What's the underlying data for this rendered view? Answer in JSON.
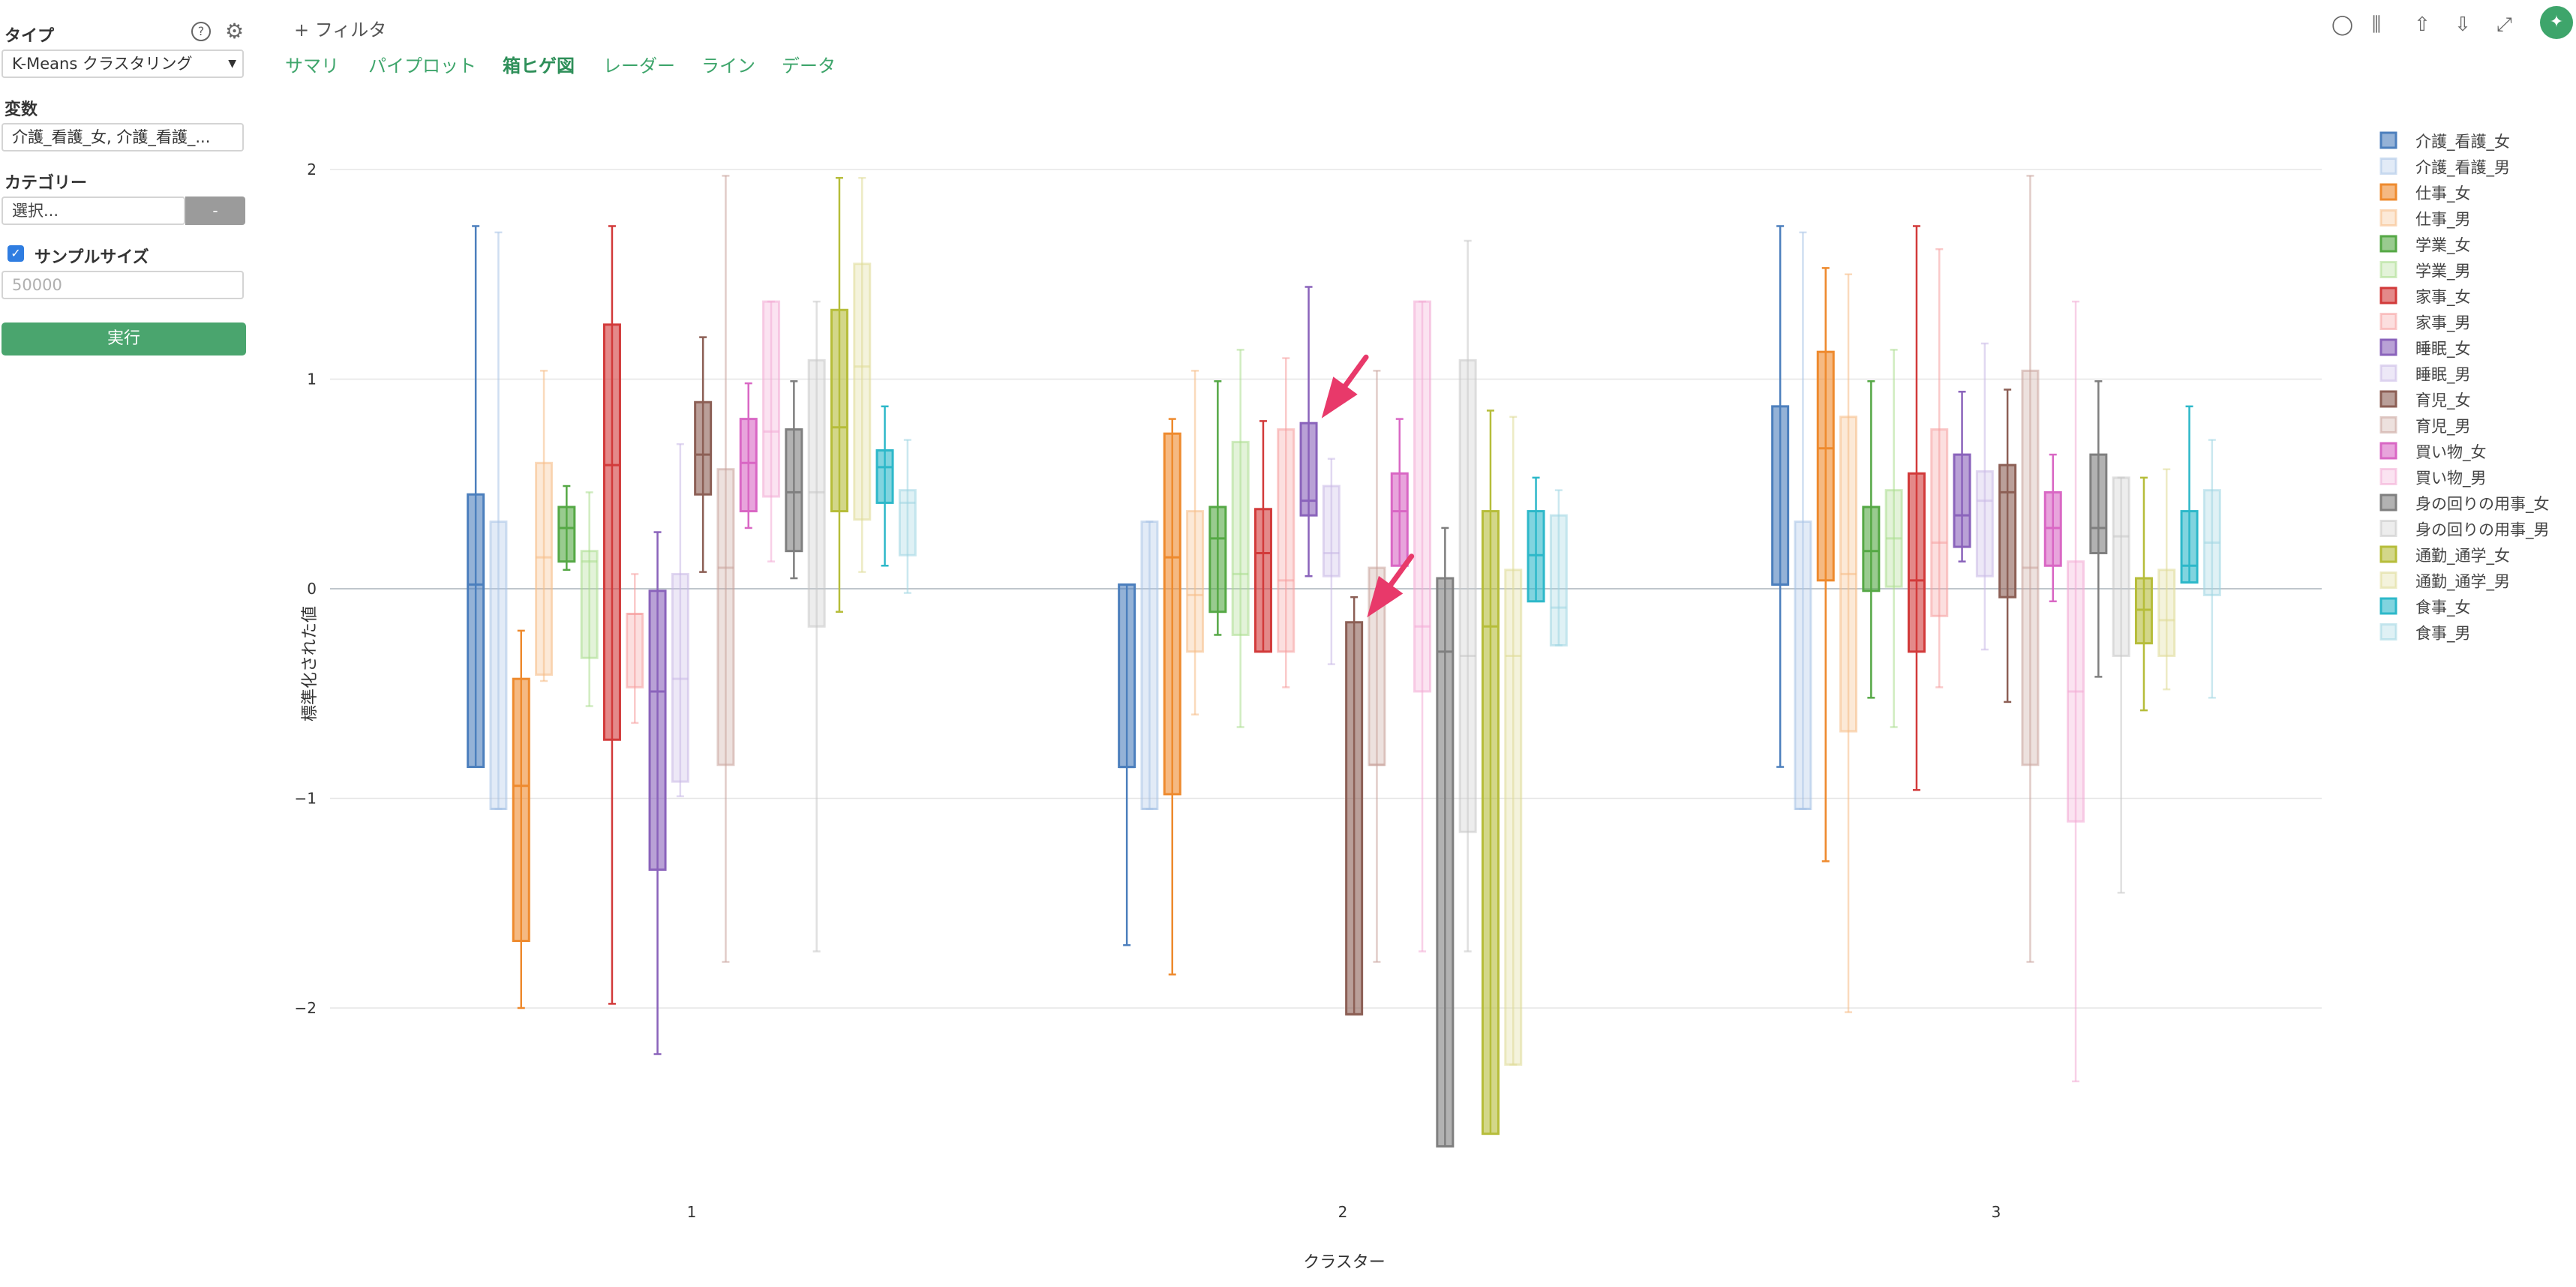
{
  "sidebar": {
    "type_label": "タイプ",
    "type_value": "K-Means クラスタリング",
    "vars_label": "変数",
    "vars_value": "介護_看護_女, 介護_看護_...",
    "category_label": "カテゴリー",
    "category_value": "選択...",
    "category_button": "-",
    "sample_label": "サンプルサイズ",
    "sample_checked": true,
    "sample_placeholder": "50000",
    "run_label": "実行"
  },
  "header": {
    "filter_label": "+ フィルタ",
    "tabs": [
      "サマリ",
      "パイプロット",
      "箱ヒゲ図",
      "レーダー",
      "ライン",
      "データ"
    ],
    "active_tab": "箱ヒゲ図"
  },
  "chart_data": {
    "type": "boxplot",
    "xlabel": "クラスター",
    "ylabel": "標準化された値",
    "ylim": [
      -2.65,
      2.25
    ],
    "yticks": [
      -2,
      -1,
      0,
      1,
      2
    ],
    "categories": [
      "1",
      "2",
      "3"
    ],
    "legend_position": "right",
    "series": [
      {
        "name": "介護_看護_女",
        "color": "#4c7fbd",
        "alpha": 1,
        "boxes": [
          {
            "min": -0.85,
            "q1": -0.85,
            "median": 0.02,
            "q3": 0.45,
            "max": 1.73
          },
          {
            "min": -1.7,
            "q1": -0.85,
            "median": -0.85,
            "q3": 0.02,
            "max": 0.02
          },
          {
            "min": -0.85,
            "q1": 0.02,
            "median": 0.02,
            "q3": 0.87,
            "max": 1.73
          }
        ]
      },
      {
        "name": "介護_看護_男",
        "color": "#a8c2e6",
        "alpha": 0.55,
        "boxes": [
          {
            "min": -1.05,
            "q1": -1.05,
            "median": -1.05,
            "q3": 0.32,
            "max": 1.7
          },
          {
            "min": -1.05,
            "q1": -1.05,
            "median": -1.05,
            "q3": 0.32,
            "max": 0.32
          },
          {
            "min": -1.05,
            "q1": -1.05,
            "median": -1.05,
            "q3": 0.32,
            "max": 1.7
          }
        ]
      },
      {
        "name": "仕事_女",
        "color": "#ee8a2e",
        "alpha": 1,
        "boxes": [
          {
            "min": -2.0,
            "q1": -1.68,
            "median": -0.94,
            "q3": -0.43,
            "max": -0.2
          },
          {
            "min": -1.84,
            "q1": -0.98,
            "median": 0.15,
            "q3": 0.74,
            "max": 0.81
          },
          {
            "min": -1.3,
            "q1": 0.04,
            "median": 0.67,
            "q3": 1.13,
            "max": 1.53
          }
        ]
      },
      {
        "name": "仕事_男",
        "color": "#f6bc85",
        "alpha": 0.55,
        "boxes": [
          {
            "min": -0.44,
            "q1": -0.41,
            "median": 0.15,
            "q3": 0.6,
            "max": 1.04
          },
          {
            "min": -0.6,
            "q1": -0.3,
            "median": -0.03,
            "q3": 0.37,
            "max": 1.04
          },
          {
            "min": -2.02,
            "q1": -0.68,
            "median": 0.07,
            "q3": 0.82,
            "max": 1.5
          }
        ]
      },
      {
        "name": "学業_女",
        "color": "#55a845",
        "alpha": 1,
        "boxes": [
          {
            "min": 0.09,
            "q1": 0.13,
            "median": 0.29,
            "q3": 0.39,
            "max": 0.49
          },
          {
            "min": -0.22,
            "q1": -0.11,
            "median": 0.24,
            "q3": 0.39,
            "max": 0.99
          },
          {
            "min": -0.52,
            "q1": -0.01,
            "median": 0.18,
            "q3": 0.39,
            "max": 0.99
          }
        ]
      },
      {
        "name": "学業_男",
        "color": "#a9dc8d",
        "alpha": 0.55,
        "boxes": [
          {
            "min": -0.56,
            "q1": -0.33,
            "median": 0.13,
            "q3": 0.18,
            "max": 0.46
          },
          {
            "min": -0.66,
            "q1": -0.22,
            "median": 0.07,
            "q3": 0.7,
            "max": 1.14
          },
          {
            "min": -0.66,
            "q1": 0.01,
            "median": 0.24,
            "q3": 0.47,
            "max": 1.14
          }
        ]
      },
      {
        "name": "家事_女",
        "color": "#d23a3a",
        "alpha": 1,
        "boxes": [
          {
            "min": -1.98,
            "q1": -0.72,
            "median": 0.59,
            "q3": 1.26,
            "max": 1.73
          },
          {
            "min": -0.3,
            "q1": -0.3,
            "median": 0.17,
            "q3": 0.38,
            "max": 0.8
          },
          {
            "min": -0.96,
            "q1": -0.3,
            "median": 0.04,
            "q3": 0.55,
            "max": 1.73
          }
        ]
      },
      {
        "name": "家事_男",
        "color": "#f59e9e",
        "alpha": 0.55,
        "boxes": [
          {
            "min": -0.64,
            "q1": -0.47,
            "median": -0.12,
            "q3": -0.12,
            "max": 0.07
          },
          {
            "min": -0.47,
            "q1": -0.3,
            "median": 0.04,
            "q3": 0.76,
            "max": 1.1
          },
          {
            "min": -0.47,
            "q1": -0.13,
            "median": 0.22,
            "q3": 0.76,
            "max": 1.62
          }
        ]
      },
      {
        "name": "睡眠_女",
        "color": "#8a63bb",
        "alpha": 1,
        "boxes": [
          {
            "min": -2.22,
            "q1": -1.34,
            "median": -0.49,
            "q3": -0.01,
            "max": 0.27
          },
          {
            "min": 0.06,
            "q1": 0.35,
            "median": 0.42,
            "q3": 0.79,
            "max": 1.44
          },
          {
            "min": 0.13,
            "q1": 0.2,
            "median": 0.35,
            "q3": 0.64,
            "max": 0.94
          }
        ]
      },
      {
        "name": "睡眠_男",
        "color": "#c9b8e6",
        "alpha": 0.55,
        "boxes": [
          {
            "min": -0.99,
            "q1": -0.92,
            "median": -0.43,
            "q3": 0.07,
            "max": 0.69
          },
          {
            "min": -0.36,
            "q1": 0.06,
            "median": 0.17,
            "q3": 0.49,
            "max": 0.62
          },
          {
            "min": -0.29,
            "q1": 0.06,
            "median": 0.42,
            "q3": 0.56,
            "max": 1.17
          }
        ]
      },
      {
        "name": "育児_女",
        "color": "#8c5f55",
        "alpha": 1,
        "boxes": [
          {
            "min": 0.08,
            "q1": 0.45,
            "median": 0.64,
            "q3": 0.89,
            "max": 1.2
          },
          {
            "min": -2.03,
            "q1": -2.03,
            "median": -2.03,
            "q3": -0.16,
            "max": -0.04
          },
          {
            "min": -0.54,
            "q1": -0.04,
            "median": 0.46,
            "q3": 0.59,
            "max": 0.95
          }
        ]
      },
      {
        "name": "育児_男",
        "color": "#c9a39b",
        "alpha": 0.55,
        "boxes": [
          {
            "min": -1.78,
            "q1": -0.84,
            "median": 0.1,
            "q3": 0.57,
            "max": 1.97
          },
          {
            "min": -1.78,
            "q1": -0.84,
            "median": -0.84,
            "q3": 0.1,
            "max": 1.04
          },
          {
            "min": -1.78,
            "q1": -0.84,
            "median": 0.1,
            "q3": 1.04,
            "max": 1.97
          }
        ]
      },
      {
        "name": "買い物_女",
        "color": "#d967c4",
        "alpha": 1,
        "boxes": [
          {
            "min": 0.29,
            "q1": 0.37,
            "median": 0.6,
            "q3": 0.81,
            "max": 0.98
          },
          {
            "min": 0.11,
            "q1": 0.11,
            "median": 0.37,
            "q3": 0.55,
            "max": 0.81
          },
          {
            "min": -0.06,
            "q1": 0.11,
            "median": 0.29,
            "q3": 0.46,
            "max": 0.64
          }
        ]
      },
      {
        "name": "買い物_男",
        "color": "#f3a9d4",
        "alpha": 0.55,
        "boxes": [
          {
            "min": 0.13,
            "q1": 0.44,
            "median": 0.75,
            "q3": 1.37,
            "max": 1.37
          },
          {
            "min": -1.73,
            "q1": -0.49,
            "median": -0.18,
            "q3": 1.37,
            "max": 1.37
          },
          {
            "min": -2.35,
            "q1": -1.11,
            "median": -0.49,
            "q3": 0.13,
            "max": 1.37
          }
        ]
      },
      {
        "name": "身の回りの用事_女",
        "color": "#7f7f7f",
        "alpha": 1,
        "boxes": [
          {
            "min": 0.05,
            "q1": 0.18,
            "median": 0.46,
            "q3": 0.76,
            "max": 0.99
          },
          {
            "min": -2.66,
            "q1": -2.66,
            "median": -0.3,
            "q3": 0.05,
            "max": 0.29
          },
          {
            "min": -0.42,
            "q1": 0.17,
            "median": 0.29,
            "q3": 0.64,
            "max": 0.99
          }
        ]
      },
      {
        "name": "身の回りの用事_男",
        "color": "#c7c7c7",
        "alpha": 0.55,
        "boxes": [
          {
            "min": -1.73,
            "q1": -0.18,
            "median": 0.46,
            "q3": 1.09,
            "max": 1.37
          },
          {
            "min": -1.73,
            "q1": -1.16,
            "median": -0.32,
            "q3": 1.09,
            "max": 1.66
          },
          {
            "min": -1.45,
            "q1": -0.32,
            "median": 0.25,
            "q3": 0.53,
            "max": 0.53
          }
        ]
      },
      {
        "name": "通勤_通学_女",
        "color": "#b6bd3a",
        "alpha": 1,
        "boxes": [
          {
            "min": -0.11,
            "q1": 0.37,
            "median": 0.77,
            "q3": 1.33,
            "max": 1.96
          },
          {
            "min": -2.6,
            "q1": -2.6,
            "median": -0.18,
            "q3": 0.37,
            "max": 0.85
          },
          {
            "min": -0.58,
            "q1": -0.26,
            "median": -0.1,
            "q3": 0.05,
            "max": 0.53
          }
        ]
      },
      {
        "name": "通勤_通学_男",
        "color": "#dedb95",
        "alpha": 0.55,
        "boxes": [
          {
            "min": 0.08,
            "q1": 0.33,
            "median": 1.06,
            "q3": 1.55,
            "max": 1.96
          },
          {
            "min": -2.27,
            "q1": -2.27,
            "median": -0.32,
            "q3": 0.09,
            "max": 0.82
          },
          {
            "min": -0.48,
            "q1": -0.32,
            "median": -0.15,
            "q3": 0.09,
            "max": 0.57
          }
        ]
      },
      {
        "name": "食事_女",
        "color": "#2db8c9",
        "alpha": 1,
        "boxes": [
          {
            "min": 0.11,
            "q1": 0.41,
            "median": 0.58,
            "q3": 0.66,
            "max": 0.87
          },
          {
            "min": -0.06,
            "q1": -0.06,
            "median": 0.16,
            "q3": 0.37,
            "max": 0.53
          },
          {
            "min": 0.03,
            "q1": 0.03,
            "median": 0.11,
            "q3": 0.37,
            "max": 0.87
          }
        ]
      },
      {
        "name": "食事_男",
        "color": "#9fd6e2",
        "alpha": 0.55,
        "boxes": [
          {
            "min": -0.02,
            "q1": 0.16,
            "median": 0.41,
            "q3": 0.47,
            "max": 0.71
          },
          {
            "min": -0.27,
            "q1": -0.27,
            "median": -0.09,
            "q3": 0.35,
            "max": 0.47
          },
          {
            "min": -0.52,
            "q1": -0.03,
            "median": 0.22,
            "q3": 0.47,
            "max": 0.71
          }
        ]
      }
    ],
    "annotations": [
      {
        "type": "arrow",
        "color": "#e8396a",
        "target_cluster": "2",
        "target_series": "睡眠_女",
        "target_value": 0.79
      },
      {
        "type": "arrow",
        "color": "#e8396a",
        "target_cluster": "2",
        "target_series": "育児_女",
        "target_value": -0.16
      }
    ]
  }
}
